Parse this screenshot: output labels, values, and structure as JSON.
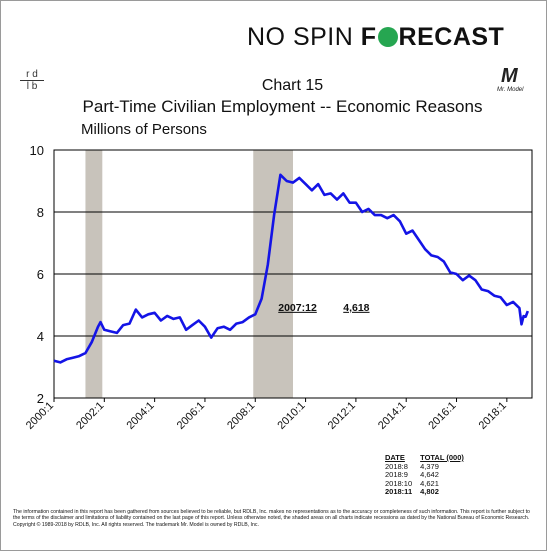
{
  "header": {
    "brand_part1": "NO SP",
    "brand_part1_i": "I",
    "brand_part1_end": "N ",
    "brand_part2": "F",
    "brand_part2_end": "RECAST",
    "rdlb_logo_top": "r d",
    "rdlb_logo_bottom": "l b",
    "mr_model_logo": "M",
    "mr_model_sub": "Mr. Model",
    "brand_color": "#26a651"
  },
  "chart_data": {
    "type": "line",
    "title_line1": "Chart 15",
    "title_line2": "Part-Time Civilian Employment -- Economic Reasons",
    "ylabel": "Millions of Persons",
    "xlabel": "",
    "ylim": [
      2,
      10
    ],
    "yticks": [
      2,
      4,
      6,
      8,
      10
    ],
    "xlim": [
      2000.0,
      2019.0
    ],
    "xticks": [
      "2000:1",
      "2002:1",
      "2004:1",
      "2006:1",
      "2008:1",
      "2010:1",
      "2012:1",
      "2014:1",
      "2016:1",
      "2018:1"
    ],
    "grid": "horizontal",
    "line_color": "#1414e6",
    "recession_color": "#c8c3bb",
    "recessions": [
      [
        2001.25,
        2001.92
      ],
      [
        2007.92,
        2009.5
      ]
    ],
    "annotation": {
      "date": "2007:12",
      "value": "4,618",
      "x": 2007.92,
      "y": 4.618
    },
    "series": [
      {
        "x": [
          2000.0,
          2000.25,
          2000.5,
          2000.75,
          2001.0,
          2001.25,
          2001.5,
          2001.75,
          2001.85,
          2002.0,
          2002.25,
          2002.5,
          2002.75,
          2003.0,
          2003.25,
          2003.5,
          2003.75,
          2004.0,
          2004.25,
          2004.5,
          2004.75,
          2005.0,
          2005.25,
          2005.5,
          2005.75,
          2006.0,
          2006.25,
          2006.5,
          2006.75,
          2007.0,
          2007.25,
          2007.5,
          2007.75,
          2008.0,
          2008.25,
          2008.5,
          2008.75,
          2009.0,
          2009.25,
          2009.5,
          2009.75,
          2010.0,
          2010.25,
          2010.5,
          2010.75,
          2011.0,
          2011.25,
          2011.5,
          2011.75,
          2012.0,
          2012.25,
          2012.5,
          2012.75,
          2013.0,
          2013.25,
          2013.5,
          2013.75,
          2014.0,
          2014.25,
          2014.5,
          2014.75,
          2015.0,
          2015.25,
          2015.5,
          2015.75,
          2016.0,
          2016.25,
          2016.5,
          2016.75,
          2017.0,
          2017.25,
          2017.5,
          2017.75,
          2018.0,
          2018.25,
          2018.5,
          2018.583,
          2018.667,
          2018.75,
          2018.833
        ],
        "y": [
          3.2,
          3.15,
          3.25,
          3.3,
          3.35,
          3.45,
          3.8,
          4.3,
          4.45,
          4.2,
          4.15,
          4.1,
          4.35,
          4.4,
          4.85,
          4.6,
          4.7,
          4.75,
          4.5,
          4.65,
          4.55,
          4.6,
          4.2,
          4.35,
          4.5,
          4.3,
          3.95,
          4.25,
          4.3,
          4.2,
          4.4,
          4.45,
          4.6,
          4.7,
          5.2,
          6.3,
          7.9,
          9.2,
          9.0,
          8.95,
          9.1,
          8.9,
          8.7,
          8.9,
          8.55,
          8.6,
          8.4,
          8.6,
          8.3,
          8.3,
          8.0,
          8.1,
          7.9,
          7.9,
          7.8,
          7.9,
          7.7,
          7.3,
          7.4,
          7.1,
          6.8,
          6.6,
          6.55,
          6.4,
          6.05,
          6.0,
          5.8,
          5.95,
          5.8,
          5.5,
          5.45,
          5.3,
          5.25,
          5.0,
          5.1,
          4.9,
          4.379,
          4.642,
          4.621,
          4.802
        ]
      }
    ]
  },
  "table": {
    "headers": [
      "DATE",
      "TOTAL (000)"
    ],
    "rows": [
      [
        "2018:8",
        "4,379"
      ],
      [
        "2018:9",
        "4,642"
      ],
      [
        "2018:10",
        "4,621"
      ],
      [
        "2018:11",
        "4,802"
      ]
    ]
  },
  "disclaimer": "The information contained in this report has been gathered from sources believed to be reliable, but RDLB, Inc. makes no representations as to the accuracy or completeness of such information. This report is further subject to the terms of the disclaimer and limitations of liability contained on the last page of this report. Unless otherwise noted, the shaded areas on all charts indicate recessions as dated by the National Bureau of Economic Research. Copyright © 1989-2018 by RDLB, Inc. All rights reserved. The trademark Mr. Model is owned by RDLB, Inc."
}
